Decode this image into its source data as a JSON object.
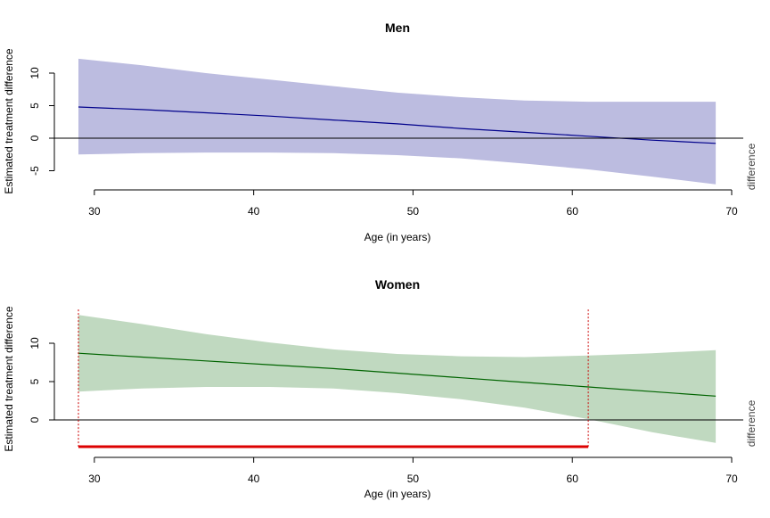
{
  "chart_data": [
    {
      "type": "area",
      "title": "Men",
      "xlabel": "Age (in years)",
      "ylabel": "Estimated treatment difference",
      "right_label": "difference",
      "xlim": [
        29,
        70
      ],
      "ylim": [
        -5,
        10
      ],
      "x_ticks": [
        30,
        40,
        50,
        60,
        70
      ],
      "y_ticks": [
        -5,
        0,
        5,
        10
      ],
      "reference_line": 0,
      "series": [
        {
          "x": [
            29,
            33,
            37,
            41,
            45,
            49,
            53,
            57,
            61,
            65,
            69
          ],
          "estimate": [
            4.8,
            4.4,
            3.9,
            3.4,
            2.8,
            2.2,
            1.5,
            0.9,
            0.3,
            -0.3,
            -0.8
          ],
          "lower": [
            -2.5,
            -2.3,
            -2.2,
            -2.2,
            -2.3,
            -2.6,
            -3.1,
            -3.9,
            -4.8,
            -5.9,
            -7.1
          ],
          "upper": [
            12.2,
            11.2,
            10.0,
            9.0,
            8.0,
            7.0,
            6.3,
            5.8,
            5.6,
            5.6,
            5.6
          ],
          "line_color": "#00008B",
          "band_color": "#BCBCE0"
        }
      ]
    },
    {
      "type": "area",
      "title": "Women",
      "xlabel": "Age (in years)",
      "ylabel": "Estimated treatment difference",
      "right_label": "difference",
      "xlim": [
        29,
        70
      ],
      "ylim": [
        0,
        10
      ],
      "x_ticks": [
        30,
        40,
        50,
        60,
        70
      ],
      "y_ticks": [
        0,
        5,
        10
      ],
      "reference_line": 0,
      "series": [
        {
          "x": [
            29,
            33,
            37,
            41,
            45,
            49,
            53,
            57,
            61,
            65,
            69
          ],
          "estimate": [
            8.7,
            8.2,
            7.7,
            7.2,
            6.7,
            6.1,
            5.5,
            4.9,
            4.3,
            3.7,
            3.1
          ],
          "lower": [
            3.7,
            4.1,
            4.3,
            4.3,
            4.1,
            3.5,
            2.7,
            1.6,
            0.1,
            -1.6,
            -3.0
          ],
          "upper": [
            13.7,
            12.5,
            11.2,
            10.1,
            9.2,
            8.6,
            8.3,
            8.2,
            8.4,
            8.7,
            9.1
          ],
          "line_color": "#006400",
          "band_color": "#C0D9C0"
        }
      ],
      "significance_region": {
        "x_start": 29,
        "x_end": 61,
        "line_color": "#CC0000",
        "bar_color": "#DD0000"
      }
    }
  ]
}
